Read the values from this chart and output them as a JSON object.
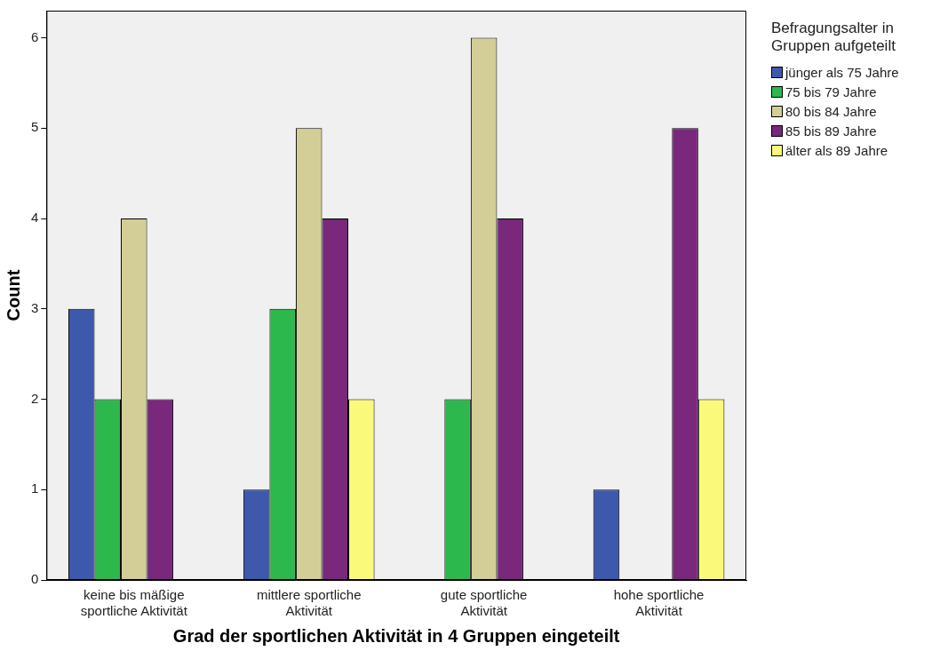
{
  "chart_data": {
    "type": "bar",
    "xlabel": "Grad der sportlichen Aktivität in 4 Gruppen eingeteilt",
    "ylabel": "Count",
    "legend_title": "Befragungsalter in Gruppen aufgeteilt",
    "legend": "top right",
    "grid": false,
    "categories": [
      "keine bis mäßige sportliche Aktivität",
      "mittlere sportliche Aktivität",
      "gute sportliche Aktivität",
      "hohe sportliche Aktivität"
    ],
    "series": [
      {
        "name": "jünger als 75 Jahre",
        "color": "#3e58ac",
        "values": [
          3,
          1,
          null,
          1
        ]
      },
      {
        "name": "75 bis 79 Jahre",
        "color": "#2db84d",
        "values": [
          2,
          3,
          2,
          null
        ]
      },
      {
        "name": "80 bis 84 Jahre",
        "color": "#d3ce97",
        "values": [
          4,
          5,
          6,
          null
        ]
      },
      {
        "name": "85 bis 89 Jahre",
        "color": "#79287c",
        "values": [
          2,
          4,
          4,
          5
        ]
      },
      {
        "name": "älter als 89 Jahre",
        "color": "#fbf97a",
        "values": [
          null,
          2,
          null,
          2
        ]
      }
    ],
    "ylim": [
      0,
      6.3
    ],
    "yticks": [
      0,
      1,
      2,
      3,
      4,
      5,
      6
    ]
  }
}
